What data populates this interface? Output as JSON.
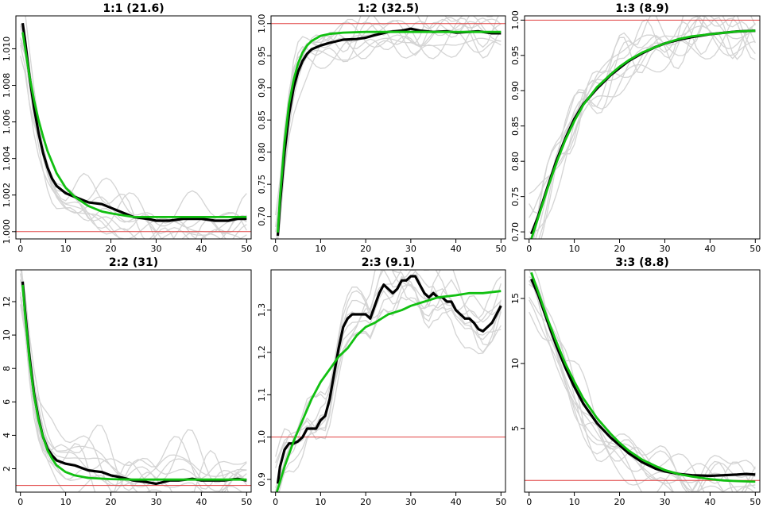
{
  "colors": {
    "mean": "#000000",
    "fit": "#11c011",
    "reference": "#e04040",
    "samples": "#d4d4d4"
  },
  "chart_data": [
    {
      "type": "line",
      "title": "1:1 (21.6)",
      "xlim": [
        -1,
        51
      ],
      "ylim": [
        0.9996,
        1.0118
      ],
      "xticks": [
        0,
        10,
        20,
        30,
        40,
        50
      ],
      "yticks": [
        1.0,
        1.002,
        1.004,
        1.006,
        1.008,
        1.01
      ],
      "ytick_labels": [
        "1.000",
        "1.002",
        "1.004",
        "1.006",
        "1.008",
        "1.010"
      ],
      "reference_y": 1.0,
      "series": [
        {
          "role": "mean",
          "x": [
            0.5,
            1,
            2,
            3,
            4,
            5,
            6,
            7,
            8,
            10,
            12,
            15,
            18,
            20,
            22,
            25,
            28,
            30,
            33,
            36,
            40,
            43,
            46,
            48,
            50
          ],
          "y": [
            1.0114,
            1.0105,
            1.0085,
            1.0068,
            1.0054,
            1.0043,
            1.0035,
            1.0029,
            1.0025,
            1.0021,
            1.0019,
            1.0016,
            1.0015,
            1.0013,
            1.0011,
            1.0008,
            1.0007,
            1.0006,
            1.0006,
            1.0007,
            1.0007,
            1.0006,
            1.0006,
            1.0007,
            1.0007
          ]
        },
        {
          "role": "fit",
          "x": [
            0.5,
            1,
            2,
            3,
            4,
            5,
            6,
            7,
            8,
            10,
            12,
            15,
            18,
            20,
            25,
            30,
            35,
            40,
            45,
            50
          ],
          "y": [
            1.0109,
            1.0101,
            1.0085,
            1.0072,
            1.0061,
            1.0052,
            1.0044,
            1.0038,
            1.0032,
            1.0024,
            1.0019,
            1.0014,
            1.0011,
            1.001,
            1.0008,
            1.0008,
            1.0008,
            1.0008,
            1.0008,
            1.0008
          ]
        }
      ]
    },
    {
      "type": "line",
      "title": "1:2 (32.5)",
      "xlim": [
        -1,
        51
      ],
      "ylim": [
        0.665,
        1.012
      ],
      "xticks": [
        0,
        10,
        20,
        30,
        40,
        50
      ],
      "yticks": [
        0.7,
        0.75,
        0.8,
        0.85,
        0.9,
        0.95,
        1.0
      ],
      "ytick_labels": [
        "0.70",
        "0.75",
        "0.80",
        "0.85",
        "0.90",
        "0.95",
        "1.00"
      ],
      "reference_y": 1.0,
      "series": [
        {
          "role": "mean",
          "x": [
            0.5,
            1,
            2,
            3,
            4,
            5,
            6,
            7,
            8,
            10,
            12,
            15,
            18,
            20,
            22,
            25,
            28,
            30,
            32,
            35,
            38,
            40,
            43,
            45,
            48,
            50
          ],
          "y": [
            0.67,
            0.72,
            0.8,
            0.86,
            0.9,
            0.925,
            0.942,
            0.953,
            0.96,
            0.966,
            0.97,
            0.975,
            0.976,
            0.978,
            0.982,
            0.987,
            0.989,
            0.992,
            0.989,
            0.987,
            0.988,
            0.986,
            0.987,
            0.988,
            0.985,
            0.985
          ]
        },
        {
          "role": "fit",
          "x": [
            0.5,
            1,
            2,
            3,
            4,
            5,
            6,
            7,
            8,
            10,
            12,
            15,
            20,
            25,
            30,
            40,
            50
          ],
          "y": [
            0.675,
            0.73,
            0.815,
            0.875,
            0.912,
            0.938,
            0.955,
            0.966,
            0.973,
            0.981,
            0.984,
            0.986,
            0.987,
            0.987,
            0.987,
            0.987,
            0.987
          ]
        }
      ]
    },
    {
      "type": "line",
      "title": "1:3 (8.9)",
      "xlim": [
        -1,
        51
      ],
      "ylim": [
        0.69,
        1.006
      ],
      "xticks": [
        0,
        10,
        20,
        30,
        40,
        50
      ],
      "yticks": [
        0.7,
        0.75,
        0.8,
        0.85,
        0.9,
        0.95,
        1.0
      ],
      "ytick_labels": [
        "0.70",
        "0.75",
        "0.80",
        "0.85",
        "0.90",
        "0.95",
        "1.00"
      ],
      "reference_y": 1.0,
      "series": [
        {
          "role": "mean",
          "x": [
            0.5,
            2,
            4,
            6,
            8,
            10,
            12,
            15,
            18,
            20,
            22,
            25,
            28,
            30,
            33,
            36,
            40,
            43,
            46,
            50
          ],
          "y": [
            0.697,
            0.722,
            0.762,
            0.8,
            0.832,
            0.86,
            0.881,
            0.903,
            0.922,
            0.932,
            0.942,
            0.953,
            0.962,
            0.967,
            0.972,
            0.976,
            0.98,
            0.982,
            0.984,
            0.985
          ]
        },
        {
          "role": "fit",
          "x": [
            0.5,
            2,
            4,
            6,
            8,
            10,
            12,
            15,
            18,
            20,
            22,
            25,
            28,
            30,
            33,
            36,
            40,
            43,
            46,
            50
          ],
          "y": [
            0.69,
            0.72,
            0.76,
            0.797,
            0.83,
            0.857,
            0.88,
            0.905,
            0.923,
            0.934,
            0.943,
            0.954,
            0.962,
            0.967,
            0.973,
            0.977,
            0.98,
            0.982,
            0.984,
            0.985
          ]
        }
      ]
    },
    {
      "type": "line",
      "title": "2:2 (31)",
      "xlim": [
        -1,
        51
      ],
      "ylim": [
        0.6,
        13.9
      ],
      "xticks": [
        0,
        10,
        20,
        30,
        40,
        50
      ],
      "yticks": [
        2,
        4,
        6,
        8,
        10,
        12
      ],
      "ytick_labels": [
        "2",
        "4",
        "6",
        "8",
        "10",
        "12"
      ],
      "reference_y": 1.0,
      "series": [
        {
          "role": "mean",
          "x": [
            0.5,
            1,
            2,
            3,
            4,
            5,
            6,
            7,
            8,
            10,
            12,
            15,
            18,
            20,
            22,
            25,
            28,
            30,
            33,
            35,
            38,
            40,
            43,
            45,
            48,
            50
          ],
          "y": [
            13.2,
            11.5,
            8.7,
            6.5,
            5.0,
            3.9,
            3.2,
            2.8,
            2.5,
            2.3,
            2.2,
            1.9,
            1.8,
            1.6,
            1.5,
            1.3,
            1.2,
            1.1,
            1.3,
            1.3,
            1.4,
            1.3,
            1.3,
            1.3,
            1.4,
            1.3
          ]
        },
        {
          "role": "fit",
          "x": [
            0.5,
            1,
            2,
            3,
            4,
            5,
            6,
            7,
            8,
            10,
            12,
            15,
            20,
            25,
            30,
            35,
            40,
            45,
            50
          ],
          "y": [
            13.0,
            11.3,
            8.5,
            6.4,
            4.9,
            3.9,
            3.1,
            2.6,
            2.2,
            1.8,
            1.6,
            1.45,
            1.38,
            1.35,
            1.35,
            1.35,
            1.35,
            1.35,
            1.35
          ]
        }
      ]
    },
    {
      "type": "line",
      "title": "2:3 (9.1)",
      "xlim": [
        -1,
        51
      ],
      "ylim": [
        0.87,
        1.395
      ],
      "xticks": [
        0,
        10,
        20,
        30,
        40,
        50
      ],
      "yticks": [
        0.9,
        1.0,
        1.1,
        1.2,
        1.3
      ],
      "ytick_labels": [
        "0.9",
        "1.0",
        "1.1",
        "1.2",
        "1.3"
      ],
      "reference_y": 1.0,
      "series": [
        {
          "role": "mean",
          "x": [
            0.5,
            1,
            2,
            3,
            4,
            5,
            6,
            7,
            8,
            9,
            10,
            11,
            12,
            13,
            14,
            15,
            16,
            17,
            18,
            19,
            20,
            21,
            22,
            23,
            24,
            25,
            26,
            27,
            28,
            29,
            30,
            31,
            32,
            33,
            34,
            35,
            36,
            37,
            38,
            39,
            40,
            41,
            42,
            43,
            44,
            45,
            46,
            47,
            48,
            49,
            50
          ],
          "y": [
            0.89,
            0.93,
            0.97,
            0.985,
            0.985,
            0.99,
            1.0,
            1.02,
            1.02,
            1.02,
            1.04,
            1.05,
            1.09,
            1.15,
            1.21,
            1.26,
            1.28,
            1.29,
            1.29,
            1.29,
            1.29,
            1.28,
            1.31,
            1.34,
            1.36,
            1.35,
            1.34,
            1.35,
            1.37,
            1.37,
            1.38,
            1.38,
            1.36,
            1.34,
            1.33,
            1.34,
            1.33,
            1.33,
            1.32,
            1.32,
            1.3,
            1.29,
            1.28,
            1.28,
            1.27,
            1.255,
            1.25,
            1.26,
            1.27,
            1.29,
            1.31
          ]
        },
        {
          "role": "fit",
          "x": [
            0,
            2,
            4,
            6,
            8,
            10,
            12,
            14,
            16,
            18,
            20,
            22,
            25,
            28,
            30,
            33,
            36,
            40,
            43,
            46,
            50
          ],
          "y": [
            0.86,
            0.93,
            0.99,
            1.04,
            1.09,
            1.13,
            1.16,
            1.19,
            1.21,
            1.24,
            1.26,
            1.27,
            1.29,
            1.3,
            1.31,
            1.32,
            1.33,
            1.335,
            1.34,
            1.34,
            1.345
          ]
        }
      ]
    },
    {
      "type": "line",
      "title": "3:3 (8.8)",
      "xlim": [
        -1,
        51
      ],
      "ylim": [
        0.1,
        17.2
      ],
      "xticks": [
        0,
        10,
        20,
        30,
        40,
        50
      ],
      "yticks": [
        5,
        10,
        15
      ],
      "ytick_labels": [
        "5",
        "10",
        "15"
      ],
      "reference_y": 1.0,
      "series": [
        {
          "role": "mean",
          "x": [
            0.5,
            2,
            4,
            6,
            8,
            10,
            12,
            15,
            18,
            20,
            22,
            25,
            28,
            30,
            33,
            36,
            40,
            43,
            46,
            48,
            50
          ],
          "y": [
            16.5,
            15.3,
            13.3,
            11.4,
            9.7,
            8.2,
            6.9,
            5.4,
            4.3,
            3.7,
            3.1,
            2.4,
            1.9,
            1.7,
            1.5,
            1.4,
            1.35,
            1.4,
            1.45,
            1.5,
            1.45
          ]
        },
        {
          "role": "fit",
          "x": [
            0.5,
            2,
            4,
            6,
            8,
            10,
            12,
            15,
            18,
            20,
            22,
            25,
            28,
            30,
            33,
            36,
            40,
            43,
            46,
            50
          ],
          "y": [
            17.0,
            15.5,
            13.5,
            11.7,
            10.0,
            8.6,
            7.3,
            5.8,
            4.6,
            3.9,
            3.3,
            2.6,
            2.1,
            1.8,
            1.5,
            1.3,
            1.1,
            1.0,
            0.95,
            0.9
          ]
        }
      ]
    }
  ]
}
